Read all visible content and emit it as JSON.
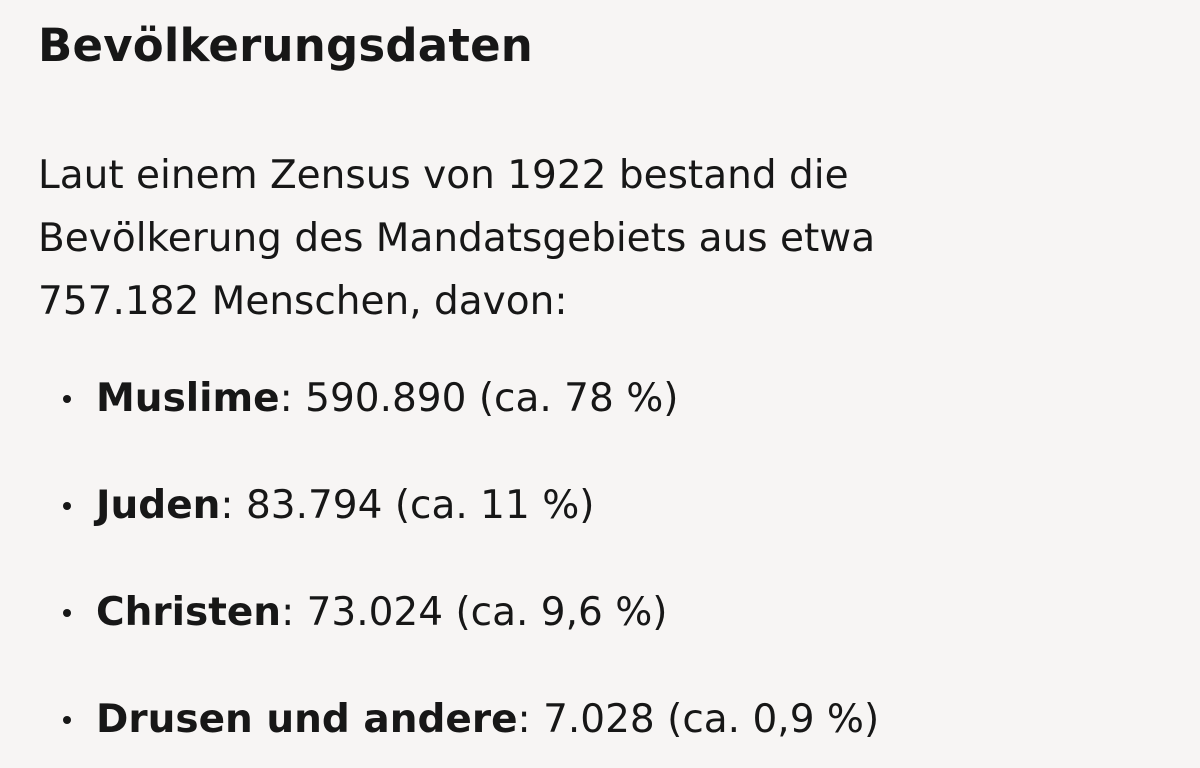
{
  "heading": "Bevölkerungsdaten",
  "intro_lines": [
    "Laut einem Zensus von 1922 bestand die",
    "Bevölkerung des Mandatsgebiets aus etwa",
    "757.182 Menschen, davon:"
  ],
  "items": [
    {
      "term": "Muslime",
      "value": ": 590.890 (ca. 78 %)"
    },
    {
      "term": "Juden",
      "value": ": 83.794 (ca. 11 %)"
    },
    {
      "term": "Christen",
      "value": ": 73.024 (ca. 9,6 %)"
    },
    {
      "term": "Drusen und andere",
      "value": ": 7.028 (ca. 0,9 %)"
    }
  ]
}
